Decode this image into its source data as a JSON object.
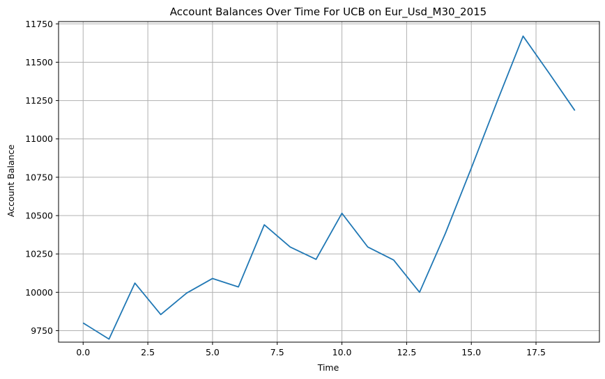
{
  "chart_data": {
    "type": "line",
    "title": "Account Balances Over Time For UCB on Eur_Usd_M30_2015",
    "xlabel": "Time",
    "ylabel": "Account Balance",
    "xlim": [
      -0.95,
      19.95
    ],
    "ylim": [
      9675,
      11765
    ],
    "x_ticks": [
      0.0,
      2.5,
      5.0,
      7.5,
      10.0,
      12.5,
      15.0,
      17.5
    ],
    "x_tick_labels": [
      "0.0",
      "2.5",
      "5.0",
      "7.5",
      "10.0",
      "12.5",
      "15.0",
      "17.5"
    ],
    "y_ticks": [
      9750,
      10000,
      10250,
      10500,
      10750,
      11000,
      11250,
      11500,
      11750
    ],
    "y_tick_labels": [
      "9750",
      "10000",
      "10250",
      "10500",
      "10750",
      "11000",
      "11250",
      "11500",
      "11750"
    ],
    "grid": true,
    "series": [
      {
        "color": "#1f77b4",
        "x": [
          0,
          1,
          2,
          3,
          4,
          5,
          6,
          7,
          8,
          9,
          10,
          11,
          12,
          13,
          14,
          15,
          16,
          17,
          18,
          19
        ],
        "values": [
          9800,
          9695,
          10060,
          9855,
          9995,
          10090,
          10035,
          10440,
          10295,
          10215,
          10515,
          10295,
          10210,
          10000,
          10385,
          10810,
          11245,
          11670,
          11430,
          11185
        ]
      }
    ]
  }
}
